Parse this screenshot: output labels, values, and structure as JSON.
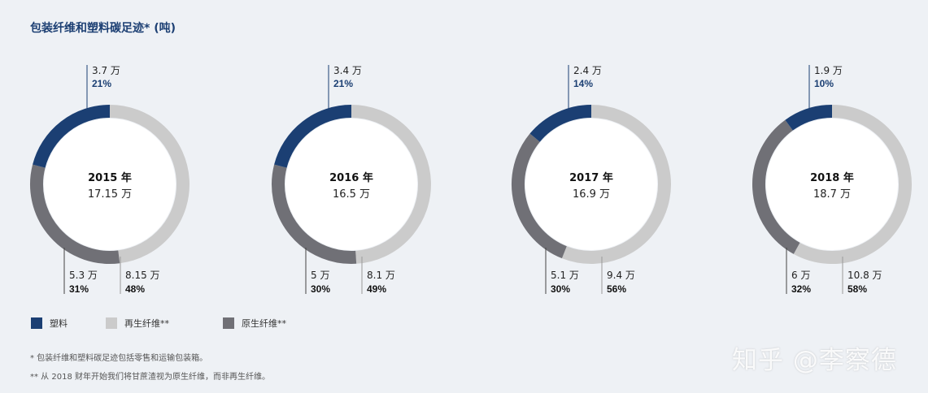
{
  "header": {
    "title": "包装纤维和塑料碳足迹* (吨)"
  },
  "colors": {
    "plastic": "#1b3f73",
    "recycled": "#cbcbcb",
    "virgin": "#707076"
  },
  "chart_data": {
    "type": "pie",
    "title": "包装纤维和塑料碳足迹* (吨)",
    "series_names": [
      "塑料",
      "再生纤维**",
      "原生纤维**"
    ],
    "charts": [
      {
        "year_label": "2015 年",
        "total_label": "17.15 万",
        "plastic": {
          "value_label": "3.7 万",
          "pct": 21,
          "pct_label": "21%"
        },
        "recycled": {
          "value_label": "8.15 万",
          "pct": 48,
          "pct_label": "48%"
        },
        "virgin": {
          "value_label": "5.3 万",
          "pct": 31,
          "pct_label": "31%"
        }
      },
      {
        "year_label": "2016 年",
        "total_label": "16.5 万",
        "plastic": {
          "value_label": "3.4 万",
          "pct": 21,
          "pct_label": "21%"
        },
        "recycled": {
          "value_label": "8.1 万",
          "pct": 49,
          "pct_label": "49%"
        },
        "virgin": {
          "value_label": "5 万",
          "pct": 30,
          "pct_label": "30%"
        }
      },
      {
        "year_label": "2017 年",
        "total_label": "16.9 万",
        "plastic": {
          "value_label": "2.4 万",
          "pct": 14,
          "pct_label": "14%"
        },
        "recycled": {
          "value_label": "9.4 万",
          "pct": 56,
          "pct_label": "56%"
        },
        "virgin": {
          "value_label": "5.1 万",
          "pct": 30,
          "pct_label": "30%"
        }
      },
      {
        "year_label": "2018 年",
        "total_label": "18.7 万",
        "plastic": {
          "value_label": "1.9 万",
          "pct": 10,
          "pct_label": "10%"
        },
        "recycled": {
          "value_label": "10.8 万",
          "pct": 58,
          "pct_label": "58%"
        },
        "virgin": {
          "value_label": "6 万",
          "pct": 32,
          "pct_label": "32%"
        }
      }
    ]
  },
  "legend": [
    {
      "label": "塑料",
      "color": "#1b3f73"
    },
    {
      "label": "再生纤维**",
      "color": "#cbcbcb"
    },
    {
      "label": "原生纤维**",
      "color": "#707076"
    }
  ],
  "footnotes": [
    "* 包装纤维和塑料碳足迹包括零售和运输包装箱。",
    "** 从 2018 财年开始我们将甘蔗渣视为原生纤维，而非再生纤维。"
  ],
  "watermark": "知乎 @李察德"
}
